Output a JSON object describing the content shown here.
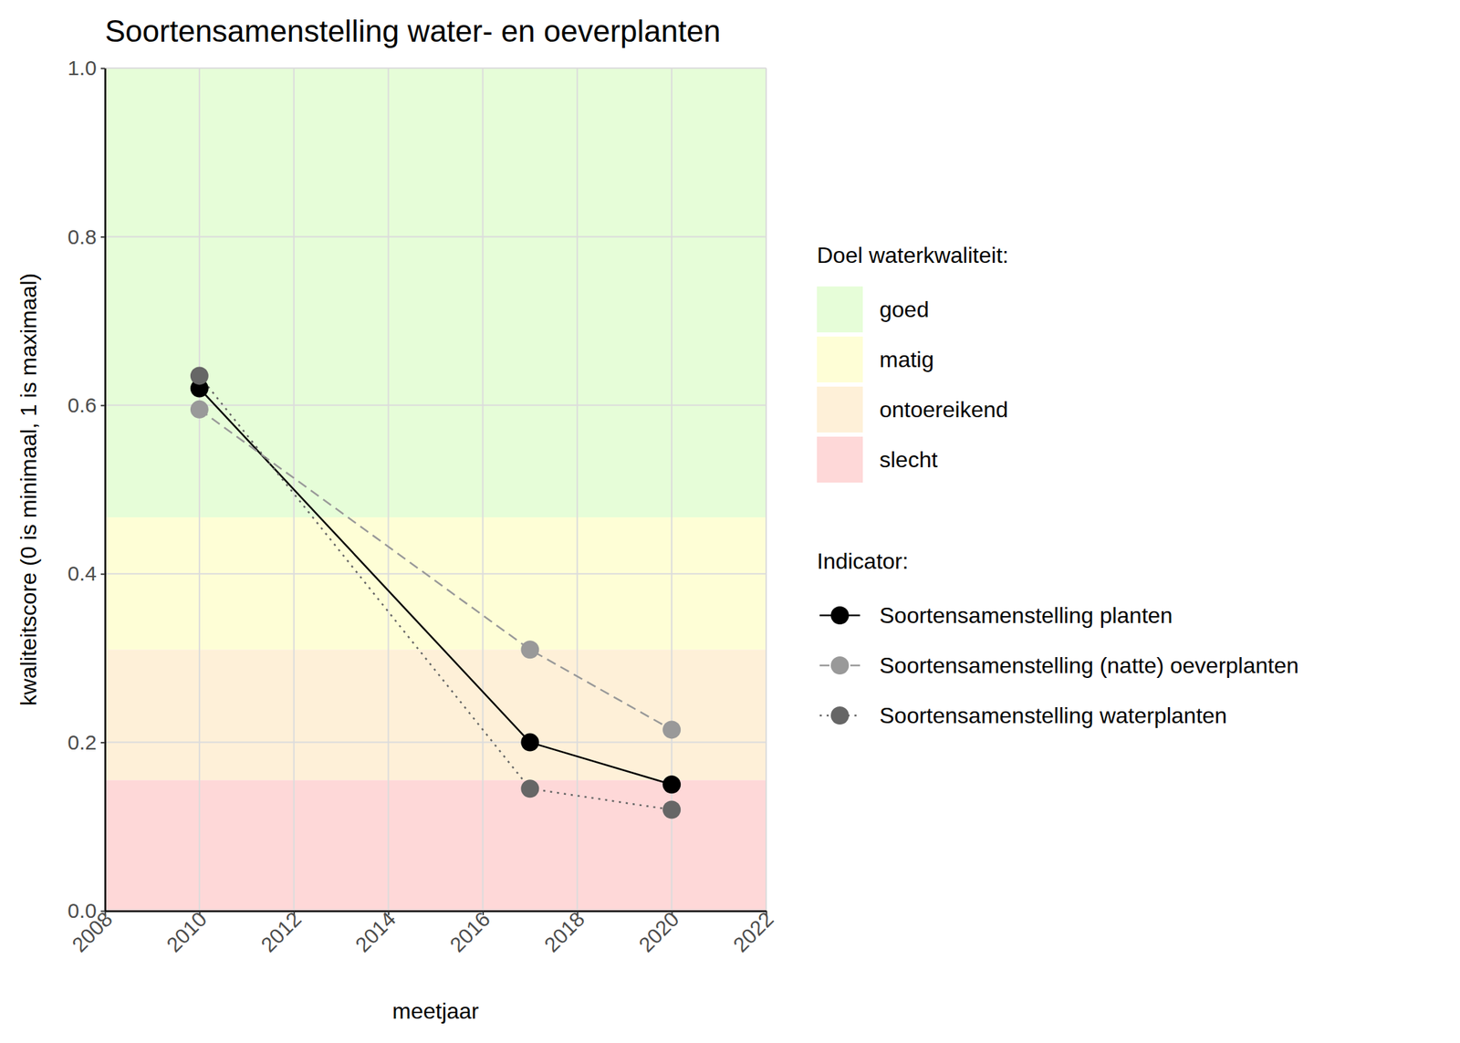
{
  "chart_data": {
    "type": "line",
    "title": "Soortensamenstelling water- en oeverplanten",
    "x_label": "meetjaar",
    "y_label": "kwaliteitscore (0 is minimaal, 1 is maximaal)",
    "x": [
      2010,
      2017,
      2020
    ],
    "series": [
      {
        "name": "Soortensamenstelling planten",
        "color": "#000000",
        "line_style": "solid",
        "marker": "circle",
        "values": [
          0.62,
          0.2,
          0.15
        ]
      },
      {
        "name": "Soortensamenstelling (natte) oeverplanten",
        "color": "#999999",
        "line_style": "dashed",
        "marker": "circle",
        "values": [
          0.595,
          0.31,
          0.215
        ]
      },
      {
        "name": "Soortensamenstelling waterplanten",
        "color": "#666666",
        "line_style": "dotted",
        "marker": "circle",
        "values": [
          0.635,
          0.145,
          0.12
        ]
      }
    ],
    "bands_title": "Doel waterkwaliteit:",
    "bands": [
      {
        "name": "goed",
        "from": 0.467,
        "to": 1.0,
        "color": "#e6fdd8"
      },
      {
        "name": "matig",
        "from": 0.31,
        "to": 0.467,
        "color": "#fefed6"
      },
      {
        "name": "ontoereikend",
        "from": 0.155,
        "to": 0.31,
        "color": "#fef0d8"
      },
      {
        "name": "slecht",
        "from": 0.0,
        "to": 0.155,
        "color": "#fed8d8"
      }
    ],
    "legend_title": "Indicator:",
    "xlim": [
      2008,
      2022
    ],
    "xticks": [
      2008,
      2010,
      2012,
      2014,
      2016,
      2018,
      2020,
      2022
    ],
    "ylim": [
      0,
      1
    ],
    "yticks": [
      {
        "value": 0,
        "label": "0.0"
      },
      0.2,
      0.4,
      0.6,
      0.8,
      {
        "value": 1,
        "label": "1.0"
      }
    ],
    "grid": true,
    "legend": "right"
  }
}
